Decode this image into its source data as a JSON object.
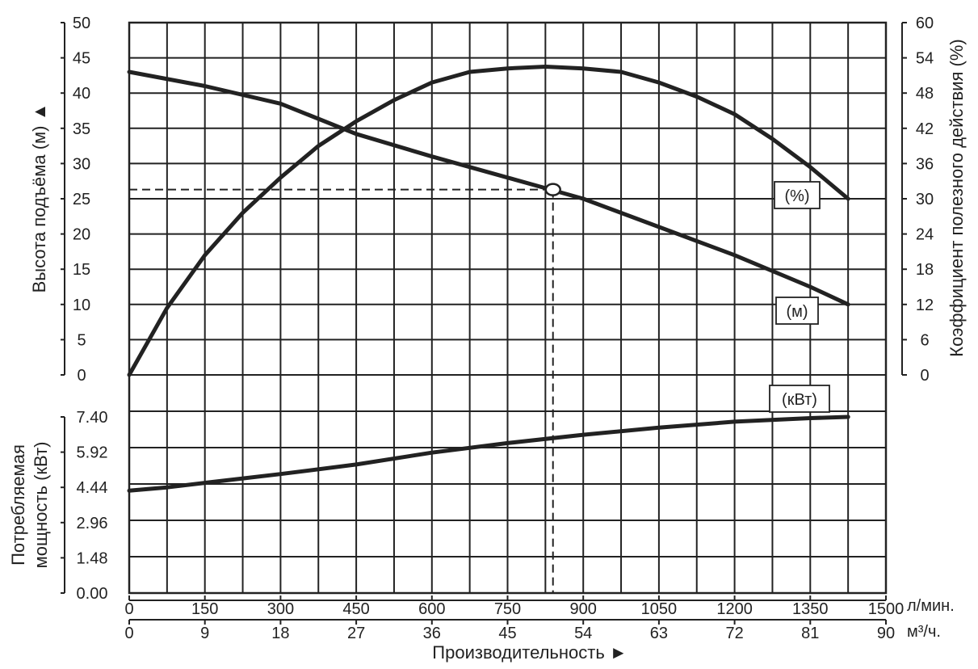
{
  "chart_data": [
    {
      "type": "line",
      "name": "head-and-efficiency",
      "x_unit": "л/мин.",
      "xlim": [
        0,
        1500
      ],
      "ylabel": "Высота подъёма (м) ▲",
      "y2label": "Коэффициент полезного действия (%)",
      "ylim": [
        0,
        50
      ],
      "y2lim": [
        0,
        60
      ],
      "yticks": [
        "0",
        "5",
        "10",
        "15",
        "20",
        "25",
        "30",
        "35",
        "40",
        "45",
        "50"
      ],
      "y2ticks": [
        "0",
        "6",
        "12",
        "18",
        "24",
        "30",
        "36",
        "42",
        "48",
        "54",
        "60"
      ],
      "series": [
        {
          "name": "(м)",
          "axis": "left",
          "points": [
            [
              0,
              43
            ],
            [
              150,
              41
            ],
            [
              300,
              38.5
            ],
            [
              450,
              34.2
            ],
            [
              600,
              31
            ],
            [
              750,
              28
            ],
            [
              825,
              26.5
            ],
            [
              900,
              25
            ],
            [
              1050,
              21
            ],
            [
              1200,
              17
            ],
            [
              1350,
              12.5
            ],
            [
              1425,
              10
            ]
          ]
        },
        {
          "name": "(%)",
          "axis": "right",
          "points": [
            [
              0,
              0
            ],
            [
              75,
              11.4
            ],
            [
              150,
              20.4
            ],
            [
              225,
              27.6
            ],
            [
              300,
              33.6
            ],
            [
              375,
              39
            ],
            [
              450,
              43.2
            ],
            [
              525,
              46.8
            ],
            [
              600,
              49.8
            ],
            [
              675,
              51.6
            ],
            [
              750,
              52.2
            ],
            [
              825,
              52.5
            ],
            [
              900,
              52.2
            ],
            [
              975,
              51.6
            ],
            [
              1050,
              49.8
            ],
            [
              1125,
              47.4
            ],
            [
              1200,
              44.4
            ],
            [
              1275,
              40.2
            ],
            [
              1350,
              35.4
            ],
            [
              1425,
              30
            ]
          ]
        }
      ],
      "operating_point": {
        "x": 840,
        "y": 26.3
      }
    },
    {
      "type": "line",
      "name": "power",
      "x_unit": "л/мин.",
      "xlim": [
        0,
        1500
      ],
      "ylabel": "Потребляемая мощность (кВт)",
      "ylim": [
        0,
        7.4
      ],
      "yticks": [
        "0.00",
        "1.48",
        "2.96",
        "4.44",
        "5.92",
        "7.40"
      ],
      "series": [
        {
          "name": "(кВт)",
          "points": [
            [
              0,
              4.3
            ],
            [
              75,
              4.44
            ],
            [
              150,
              4.63
            ],
            [
              300,
              5.0
            ],
            [
              450,
              5.4
            ],
            [
              600,
              5.9
            ],
            [
              750,
              6.3
            ],
            [
              900,
              6.65
            ],
            [
              1050,
              6.95
            ],
            [
              1200,
              7.2
            ],
            [
              1350,
              7.35
            ],
            [
              1425,
              7.4
            ]
          ]
        }
      ]
    }
  ],
  "x_axis": {
    "xlabel": "Производительность ►",
    "ticks_lpm": [
      "0",
      "150",
      "300",
      "450",
      "600",
      "750",
      "900",
      "1050",
      "1200",
      "1350",
      "1500"
    ],
    "unit_lpm": "л/мин.",
    "ticks_m3h": [
      "0",
      "9",
      "18",
      "27",
      "36",
      "45",
      "54",
      "63",
      "72",
      "81",
      "90"
    ],
    "unit_m3h": "м³/ч."
  }
}
